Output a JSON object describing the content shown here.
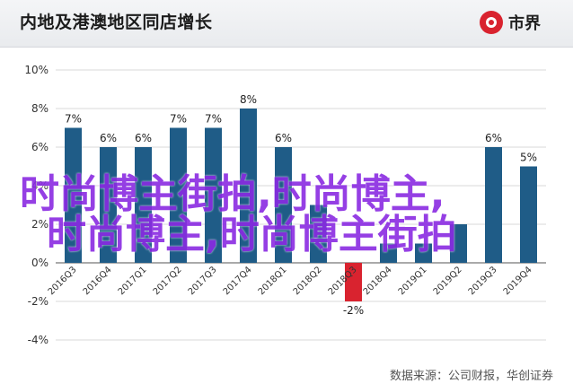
{
  "header": {
    "title": "内地及港澳地区同店增长",
    "logo_text": "市界"
  },
  "source": "数据来源：公司财报，华创证券",
  "watermark": {
    "line1": "时尚博主街拍,时尚博主,",
    "line2": "时尚博主,时尚博主街拍"
  },
  "colors": {
    "bar": "#1f5c87",
    "negative_bar": "#d9232f",
    "negative_label": "#d9232f",
    "grid": "#d9d9d9"
  },
  "chart_data": {
    "type": "bar",
    "categories": [
      "2016Q3",
      "2016Q4",
      "2017Q1",
      "2017Q2",
      "2017Q3",
      "2017Q4",
      "2018Q1",
      "2018Q2",
      "2018Q3",
      "2018Q4",
      "2019Q1",
      "2019Q2",
      "2019Q3",
      "2019Q4"
    ],
    "values": [
      7,
      6,
      6,
      7,
      7,
      8,
      6,
      3,
      -2,
      1,
      1,
      2,
      6,
      5
    ],
    "data_labels": [
      "7%",
      "6%",
      "6%",
      "7%",
      "7%",
      "8%",
      "6%",
      "",
      "-2%",
      "",
      "",
      "",
      "6%",
      "5%"
    ],
    "ylim": [
      -4,
      10
    ],
    "yticks": [
      "-4%",
      "-2%",
      "0%",
      "2%",
      "4%",
      "6%",
      "8%",
      "10%"
    ],
    "grid": true
  }
}
